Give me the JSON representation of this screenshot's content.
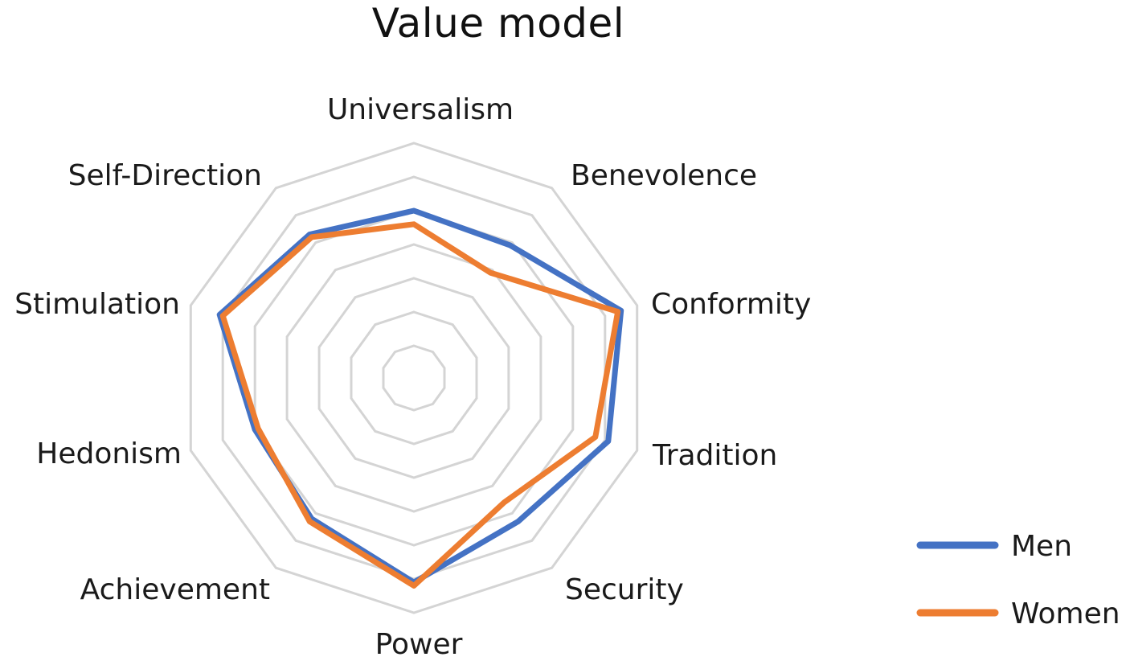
{
  "chart_data": {
    "type": "radar",
    "title": "Value model",
    "categories": [
      "Universalism",
      "Benevolence",
      "Conformity",
      "Tradition",
      "Security",
      "Power",
      "Achievement",
      "Hedonism",
      "Stimulation",
      "Self-Direction"
    ],
    "rings": 6,
    "grid": true,
    "legend_position": "bottom-right",
    "series": [
      {
        "name": "Men",
        "color": "#4472C4",
        "values": [
          4.0,
          3.9,
          5.5,
          5.1,
          4.3,
          5.1,
          4.2,
          4.0,
          5.1,
          4.3
        ]
      },
      {
        "name": "Women",
        "color": "#ED7D31",
        "values": [
          3.6,
          2.9,
          5.4,
          4.7,
          3.6,
          5.2,
          4.3,
          3.9,
          5.0,
          4.2
        ]
      }
    ]
  }
}
